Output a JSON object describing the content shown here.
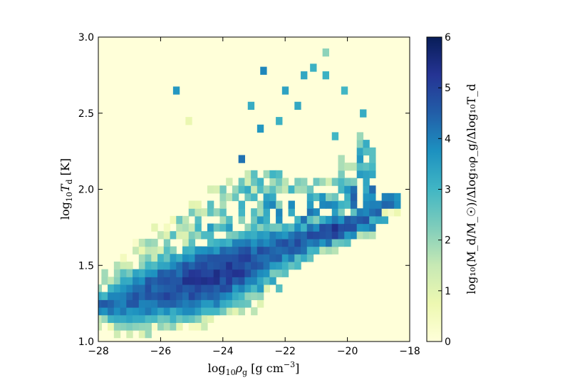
{
  "chart_data": {
    "type": "heatmap",
    "title": "",
    "xlabel": {
      "base": "log",
      "sub1": "10",
      "sym": "ρ",
      "sub2": "g",
      "unit": " [g cm",
      "sup": "−3",
      "close": "]"
    },
    "ylabel": {
      "base": "log",
      "sub1": "10",
      "sym": "T",
      "sub2": "d",
      "unit": " [K]"
    },
    "colorbar_label": {
      "text": "log₁₀(M_d/M_☉)/Δlog₁₀ρ_g/Δlog₁₀T_d"
    },
    "xlim": [
      -28,
      -18
    ],
    "ylim": [
      1.0,
      3.0
    ],
    "x_ticks": [
      -28,
      -26,
      -24,
      -22,
      -20,
      -18
    ],
    "x_tick_labels": [
      "−28",
      "−26",
      "−24",
      "−22",
      "−20",
      "−18"
    ],
    "y_ticks": [
      1.0,
      1.5,
      2.0,
      2.5,
      3.0
    ],
    "y_tick_labels": [
      "1.0",
      "1.5",
      "2.0",
      "2.5",
      "3.0"
    ],
    "colorbar_range": [
      0,
      6
    ],
    "colorbar_ticks": [
      0,
      1,
      2,
      3,
      4,
      5,
      6
    ],
    "colorbar_tick_labels": [
      "0",
      "1",
      "2",
      "3",
      "4",
      "5",
      "6"
    ],
    "colormap": "YlGnBu",
    "background_color": "#ffffd9",
    "grid": false,
    "cells": [
      {
        "x": -25.5,
        "y": 2.65,
        "v": 3.6
      },
      {
        "x": -25.1,
        "y": 2.45,
        "v": 0.8
      },
      {
        "x": -23.1,
        "y": 2.55,
        "v": 3.2
      },
      {
        "x": -23.4,
        "y": 2.2,
        "v": 4.2
      },
      {
        "x": -22.7,
        "y": 2.78,
        "v": 3.9
      },
      {
        "x": -22.0,
        "y": 2.65,
        "v": 3.4
      },
      {
        "x": -21.4,
        "y": 2.75,
        "v": 3.3
      },
      {
        "x": -21.1,
        "y": 2.8,
        "v": 3.1
      },
      {
        "x": -20.7,
        "y": 2.9,
        "v": 2.1
      },
      {
        "x": -20.7,
        "y": 2.75,
        "v": 3.1
      },
      {
        "x": -20.1,
        "y": 2.65,
        "v": 3.0
      },
      {
        "x": -19.5,
        "y": 2.5,
        "v": 3.2
      },
      {
        "x": -20.4,
        "y": 2.35,
        "v": 3.0
      },
      {
        "x": -21.6,
        "y": 2.55,
        "v": 3.3
      },
      {
        "x": -22.2,
        "y": 2.45,
        "v": 3.1
      },
      {
        "x": -22.8,
        "y": 2.4,
        "v": 3.6
      }
    ],
    "bands": [
      {
        "x": -27.8,
        "yc": 1.24,
        "h": 0.16,
        "v": 4.4
      },
      {
        "x": -27.4,
        "yc": 1.26,
        "h": 0.26,
        "v": 4.2
      },
      {
        "x": -27.0,
        "yc": 1.28,
        "h": 0.34,
        "v": 4.3
      },
      {
        "x": -26.6,
        "yc": 1.3,
        "h": 0.38,
        "v": 4.4
      },
      {
        "x": -26.2,
        "yc": 1.33,
        "h": 0.4,
        "v": 4.6
      },
      {
        "x": -25.8,
        "yc": 1.35,
        "h": 0.42,
        "v": 4.8
      },
      {
        "x": -25.4,
        "yc": 1.37,
        "h": 0.44,
        "v": 4.9
      },
      {
        "x": -25.0,
        "yc": 1.39,
        "h": 0.46,
        "v": 5.0
      },
      {
        "x": -24.6,
        "yc": 1.41,
        "h": 0.46,
        "v": 5.1
      },
      {
        "x": -24.2,
        "yc": 1.43,
        "h": 0.46,
        "v": 5.1
      },
      {
        "x": -23.8,
        "yc": 1.46,
        "h": 0.44,
        "v": 5.1
      },
      {
        "x": -23.4,
        "yc": 1.49,
        "h": 0.42,
        "v": 5.0
      },
      {
        "x": -23.0,
        "yc": 1.52,
        "h": 0.4,
        "v": 4.8
      },
      {
        "x": -22.6,
        "yc": 1.56,
        "h": 0.36,
        "v": 4.6
      },
      {
        "x": -22.2,
        "yc": 1.6,
        "h": 0.32,
        "v": 4.5
      },
      {
        "x": -21.8,
        "yc": 1.63,
        "h": 0.28,
        "v": 4.5
      },
      {
        "x": -21.4,
        "yc": 1.66,
        "h": 0.24,
        "v": 4.6
      },
      {
        "x": -21.0,
        "yc": 1.69,
        "h": 0.22,
        "v": 4.7
      },
      {
        "x": -20.6,
        "yc": 1.72,
        "h": 0.2,
        "v": 4.9
      },
      {
        "x": -20.2,
        "yc": 1.74,
        "h": 0.18,
        "v": 5.1
      },
      {
        "x": -19.8,
        "yc": 1.76,
        "h": 0.16,
        "v": 5.2
      },
      {
        "x": -19.4,
        "yc": 1.8,
        "h": 0.16,
        "v": 4.9
      },
      {
        "x": -19.0,
        "yc": 1.86,
        "h": 0.14,
        "v": 4.6
      },
      {
        "x": -18.6,
        "yc": 1.92,
        "h": 0.1,
        "v": 4.5
      }
    ],
    "halo": [
      {
        "x": -27.8,
        "yc": 1.28,
        "h": 0.36,
        "v": 2.6
      },
      {
        "x": -27.2,
        "yc": 1.32,
        "h": 0.5,
        "v": 2.4
      },
      {
        "x": -26.6,
        "yc": 1.36,
        "h": 0.6,
        "v": 2.2
      },
      {
        "x": -26.0,
        "yc": 1.42,
        "h": 0.66,
        "v": 2.2
      },
      {
        "x": -25.4,
        "yc": 1.48,
        "h": 0.72,
        "v": 2.4
      },
      {
        "x": -24.8,
        "yc": 1.52,
        "h": 0.8,
        "v": 2.6
      },
      {
        "x": -24.2,
        "yc": 1.58,
        "h": 0.86,
        "v": 2.8
      },
      {
        "x": -23.6,
        "yc": 1.64,
        "h": 0.9,
        "v": 3.0
      },
      {
        "x": -23.0,
        "yc": 1.68,
        "h": 0.92,
        "v": 3.0
      },
      {
        "x": -22.4,
        "yc": 1.74,
        "h": 0.8,
        "v": 3.2
      },
      {
        "x": -21.8,
        "yc": 1.78,
        "h": 0.6,
        "v": 3.3
      },
      {
        "x": -21.2,
        "yc": 1.82,
        "h": 0.5,
        "v": 3.3
      },
      {
        "x": -20.6,
        "yc": 1.86,
        "h": 0.4,
        "v": 3.4
      },
      {
        "x": -20.0,
        "yc": 1.95,
        "h": 0.5,
        "v": 3.5
      },
      {
        "x": -19.4,
        "yc": 2.05,
        "h": 0.6,
        "v": 3.6
      }
    ]
  }
}
